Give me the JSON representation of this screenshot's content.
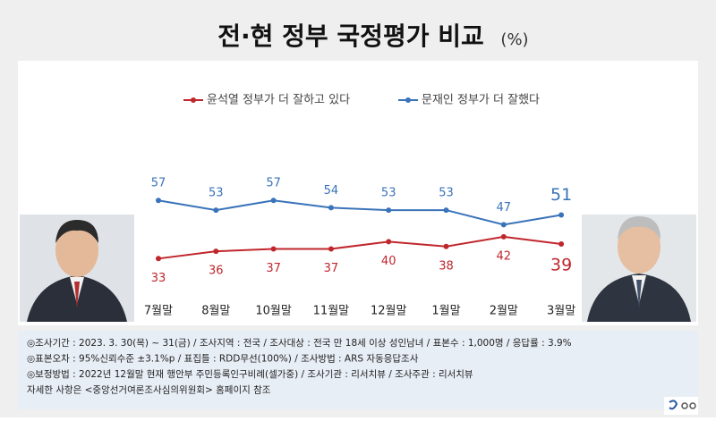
{
  "chart_data": {
    "type": "line",
    "title": "전·현 정부 국정평가 비교",
    "unit": "(%)",
    "categories": [
      "7월말",
      "8월말",
      "10월말",
      "11월말",
      "12월말",
      "1월말",
      "2월말",
      "3월말"
    ],
    "series": [
      {
        "name": "윤석열 정부가 더 잘하고 있다",
        "color": "#c0272d",
        "values": [
          33,
          36,
          37,
          37,
          40,
          38,
          42,
          39
        ]
      },
      {
        "name": "문재인 정부가 더 잘했다",
        "color": "#3a73b9",
        "values": [
          57,
          53,
          57,
          54,
          53,
          53,
          47,
          51
        ]
      }
    ],
    "ylim": [
      25,
      77
    ],
    "notes": [
      "◎조사기간 : 2023. 3. 30(목) ~ 31(금) / 조사지역 : 전국 / 조사대상 : 전국 만 18세 이상 성인남녀 / 표본수 : 1,000명 / 응답률 : 3.9%",
      "◎표본오차 : 95%신뢰수준 ±3.1%p  / 표집틀 : RDD무선(100%) / 조사방법 : ARS 자동응답조사",
      "◎보정방법 : 2022년 12월말 현재 행안부 주민등록인구비례(셀가중) / 조사기관 : 리서치뷰 / 조사주관 : 리서치뷰",
      "자세한 사항은 <중앙선거여론조사심의위원회> 홈페이지 참조"
    ]
  }
}
